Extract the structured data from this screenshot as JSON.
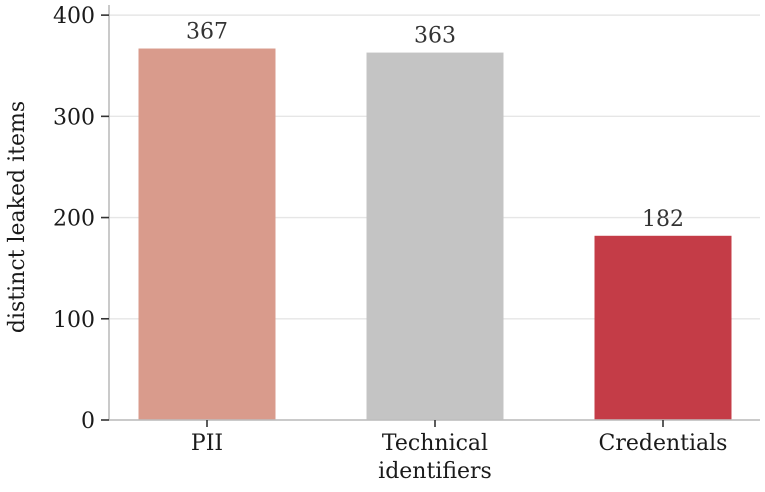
{
  "chart_data": {
    "type": "bar",
    "categories": [
      "PII",
      "Technical\nidentifiers",
      "Credentials"
    ],
    "values": [
      367,
      363,
      182
    ],
    "data_labels": [
      "367",
      "363",
      "182"
    ],
    "colors": [
      "#d99b8c",
      "#c4c4c4",
      "#c43c47"
    ],
    "title": "",
    "xlabel": "",
    "ylabel": "distinct leaked items",
    "ylim": [
      0,
      410
    ],
    "yticks": [
      0,
      100,
      200,
      300,
      400
    ],
    "grid": true,
    "legend": "none"
  }
}
